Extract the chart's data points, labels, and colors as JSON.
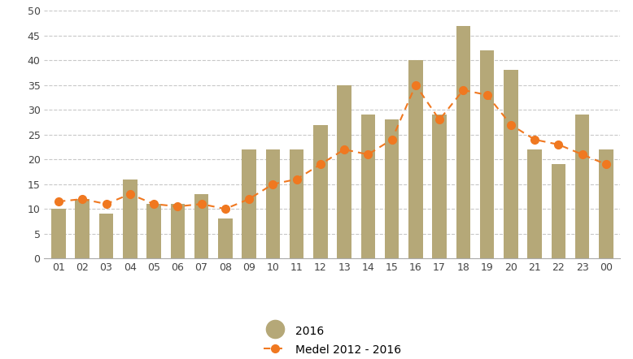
{
  "categories": [
    "01",
    "02",
    "03",
    "04",
    "05",
    "06",
    "07",
    "08",
    "09",
    "10",
    "11",
    "12",
    "13",
    "14",
    "15",
    "16",
    "17",
    "18",
    "19",
    "20",
    "21",
    "22",
    "23",
    "00"
  ],
  "bar_values": [
    10,
    12,
    9,
    16,
    11,
    11,
    13,
    8,
    22,
    22,
    22,
    27,
    35,
    29,
    28,
    40,
    29,
    47,
    42,
    38,
    22,
    19,
    29,
    22
  ],
  "line_values": [
    11.5,
    12,
    11,
    13,
    11,
    10.5,
    11,
    10,
    12,
    15,
    16,
    19,
    22,
    21,
    24,
    35,
    28,
    34,
    33,
    27,
    24,
    23,
    21,
    19
  ],
  "bar_color": "#b5a878",
  "line_color": "#f07820",
  "background_color": "#ffffff",
  "ylim": [
    0,
    50
  ],
  "yticks": [
    0,
    5,
    10,
    15,
    20,
    25,
    30,
    35,
    40,
    45,
    50
  ],
  "grid_color": "#c8c8c8",
  "legend_bar_label": "2016",
  "legend_line_label": "Medel 2012 - 2016"
}
